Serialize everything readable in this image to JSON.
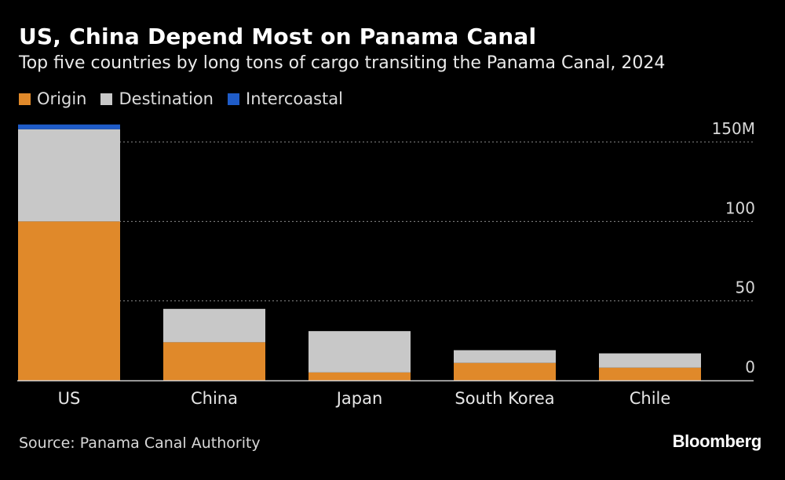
{
  "title": "US, China Depend Most on Panama Canal",
  "subtitle": "Top five countries by long tons of cargo transiting the Panama Canal, 2024",
  "source": "Source: Panama Canal Authority",
  "brand": "Bloomberg",
  "colors": {
    "origin": "#e0892a",
    "destination": "#c8c8c8",
    "intercoastal": "#1f5cc8",
    "grid": "#8a8a8a",
    "axis": "#d0d0d0"
  },
  "chart_data": {
    "type": "bar",
    "stacked": true,
    "categories": [
      "US",
      "China",
      "Japan",
      "South Korea",
      "Chile"
    ],
    "series": [
      {
        "name": "Origin",
        "values": [
          100,
          24,
          5,
          11,
          8
        ]
      },
      {
        "name": "Destination",
        "values": [
          58,
          21,
          26,
          8,
          9
        ]
      },
      {
        "name": "Intercoastal",
        "values": [
          3,
          0,
          0,
          0,
          0
        ]
      }
    ],
    "ylim": [
      0,
      150
    ],
    "yticks": [
      {
        "value": 0,
        "label": "0"
      },
      {
        "value": 50,
        "label": "50"
      },
      {
        "value": 100,
        "label": "100"
      },
      {
        "value": 150,
        "label": "150M"
      }
    ],
    "grid": true,
    "legend": "top-left"
  }
}
